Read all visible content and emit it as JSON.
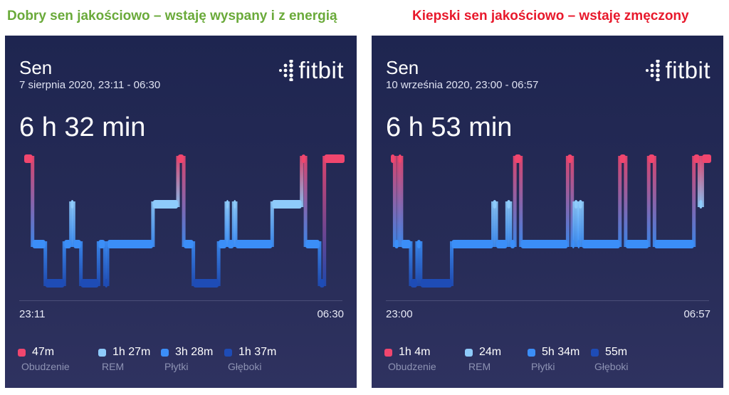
{
  "headings": {
    "good": "Dobry sen jakościowo – wstaję wyspany i z energią",
    "bad": "Kiepski sen jakościowo – wstaję zmęczony",
    "good_color": "#6aaa3a",
    "bad_color": "#e8192c"
  },
  "colors": {
    "awake": "#f0466e",
    "rem": "#8ecbfb",
    "light": "#3b8ef7",
    "deep": "#1e4cb6"
  },
  "panels": [
    {
      "title": "Sen",
      "date": "7 sierpnia 2020, 23:11 - 06:30",
      "logo_text": "fitbit",
      "logo_icon": "fitbit-dots-icon",
      "duration": "6 h 32 min",
      "time_start": "23:11",
      "time_end": "06:30",
      "legend": [
        {
          "value": "47m",
          "label": "Obudzenie",
          "color": "#f0466e"
        },
        {
          "value": "1h 27m",
          "label": "REM",
          "color": "#8ecbfb"
        },
        {
          "value": "3h 28m",
          "label": "Płytki",
          "color": "#3b8ef7"
        },
        {
          "value": "1h 37m",
          "label": "Głęboki",
          "color": "#1e4cb6"
        }
      ],
      "hypnogram": [
        [
          "awake",
          0,
          2.6
        ],
        [
          "light",
          2.6,
          6.6
        ],
        [
          "deep",
          6.6,
          12.5
        ],
        [
          "light",
          12.5,
          14.6
        ],
        [
          "rem",
          14.6,
          15.4
        ],
        [
          "light",
          15.4,
          17.7
        ],
        [
          "deep",
          17.7,
          23.2
        ],
        [
          "light",
          23.2,
          25.2
        ],
        [
          "deep",
          25.2,
          26.0
        ],
        [
          "light",
          26.0,
          40.2
        ],
        [
          "rem",
          40.2,
          48.0
        ],
        [
          "awake",
          48.0,
          49.8
        ],
        [
          "light",
          49.8,
          52.8
        ],
        [
          "deep",
          52.8,
          60.7
        ],
        [
          "light",
          60.7,
          63.1
        ],
        [
          "rem",
          63.1,
          63.6
        ],
        [
          "light",
          63.6,
          65.4
        ],
        [
          "rem",
          65.4,
          66.0
        ],
        [
          "light",
          66.0,
          77.4
        ],
        [
          "rem",
          77.4,
          86.6
        ],
        [
          "awake",
          86.6,
          87.8
        ],
        [
          "light",
          87.8,
          92.2
        ],
        [
          "deep",
          92.2,
          93.7
        ],
        [
          "awake",
          93.7,
          100
        ]
      ]
    },
    {
      "title": "Sen",
      "date": "10 września 2020, 23:00 - 06:57",
      "logo_text": "fitbit",
      "logo_icon": "fitbit-dots-icon",
      "duration": "6 h 53 min",
      "time_start": "23:00",
      "time_end": "06:57",
      "legend": [
        {
          "value": "1h 4m",
          "label": "Obudzenie",
          "color": "#f0466e"
        },
        {
          "value": "24m",
          "label": "REM",
          "color": "#8ecbfb"
        },
        {
          "value": "5h 34m",
          "label": "Płytki",
          "color": "#3b8ef7"
        },
        {
          "value": "55m",
          "label": "Głęboki",
          "color": "#1e4cb6"
        }
      ],
      "hypnogram": [
        [
          "awake",
          0,
          1.2
        ],
        [
          "light",
          1.2,
          2.4
        ],
        [
          "awake",
          2.4,
          3.3
        ],
        [
          "light",
          3.3,
          6.2
        ],
        [
          "deep",
          6.2,
          8.2
        ],
        [
          "light",
          8.2,
          9.3
        ],
        [
          "deep",
          9.3,
          19.0
        ],
        [
          "light",
          19.0,
          31.9
        ],
        [
          "rem",
          31.9,
          32.9
        ],
        [
          "light",
          32.9,
          36.3
        ],
        [
          "rem",
          36.3,
          37.3
        ],
        [
          "light",
          37.3,
          38.7
        ],
        [
          "awake",
          38.7,
          40.6
        ],
        [
          "light",
          40.6,
          55.2
        ],
        [
          "awake",
          55.2,
          56.6
        ],
        [
          "light",
          56.6,
          57.3
        ],
        [
          "rem",
          57.3,
          58.3
        ],
        [
          "light",
          58.3,
          58.7
        ],
        [
          "rem",
          58.7,
          59.7
        ],
        [
          "light",
          59.7,
          71.5
        ],
        [
          "awake",
          71.5,
          73.3
        ],
        [
          "light",
          73.3,
          80.5
        ],
        [
          "awake",
          80.5,
          82.3
        ],
        [
          "light",
          82.3,
          94.6
        ],
        [
          "awake",
          94.6,
          96.3
        ],
        [
          "rem",
          96.3,
          97.2
        ],
        [
          "awake",
          97.2,
          100
        ]
      ]
    }
  ]
}
